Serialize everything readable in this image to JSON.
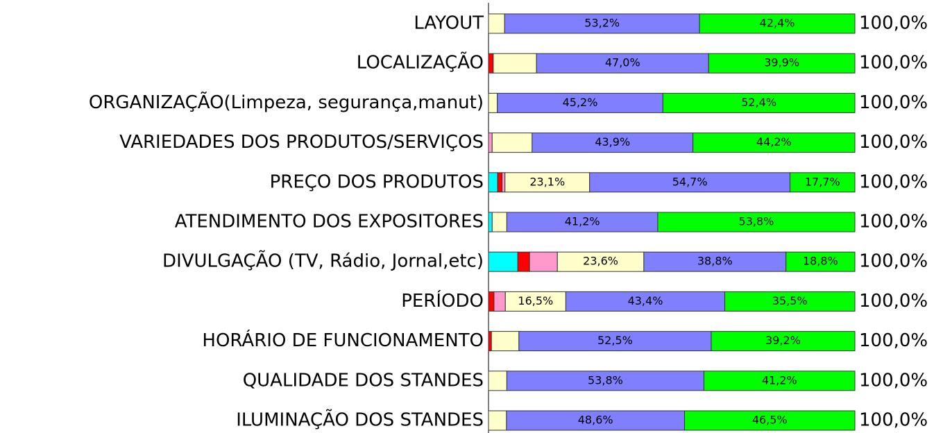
{
  "chart_data": {
    "type": "stacked-bar-horizontal",
    "categories": [
      "LAYOUT",
      "LOCALIZAÇÃO",
      "ORGANIZAÇÃO(Limpeza, segurança,manut)",
      "VARIEDADES DOS PRODUTOS/SERVIÇOS",
      "PREÇO DOS PRODUTOS",
      "ATENDIMENTO DOS EXPOSITORES",
      "DIVULGAÇÃO (TV, Rádio, Jornal,etc)",
      "PERÍODO",
      "HORÁRIO DE FUNCIONAMENTO",
      "QUALIDADE DOS STANDES",
      "ILUMINAÇÃO DOS STANDES"
    ],
    "xlim": [
      0,
      100
    ],
    "series": [
      {
        "color": "#00ffff",
        "values": [
          0,
          0,
          0,
          0,
          2.5,
          1.0,
          8.0,
          0,
          0,
          0,
          0
        ]
      },
      {
        "color": "#ff0000",
        "values": [
          0,
          1.3,
          0,
          0,
          1.2,
          0,
          3.2,
          1.5,
          0.8,
          0,
          0
        ]
      },
      {
        "color": "#ff99cc",
        "values": [
          0,
          0,
          0,
          1.0,
          0.8,
          0,
          7.6,
          3.1,
          0,
          0,
          0
        ]
      },
      {
        "color": "#ffffcc",
        "values": [
          4.4,
          11.8,
          2.4,
          10.9,
          23.1,
          4.0,
          23.6,
          16.5,
          7.5,
          5.0,
          4.9
        ],
        "value_labels": [
          null,
          null,
          null,
          null,
          "23,1%",
          null,
          "23,6%",
          "16,5%",
          null,
          null,
          null
        ]
      },
      {
        "color": "#8080ff",
        "values": [
          53.2,
          47.0,
          45.2,
          43.9,
          54.7,
          41.2,
          38.8,
          43.4,
          52.5,
          53.8,
          48.6
        ],
        "value_labels": [
          "53,2%",
          "47,0%",
          "45,2%",
          "43,9%",
          "54,7%",
          "41,2%",
          "38,8%",
          "43,4%",
          "52,5%",
          "53,8%",
          "48,6%"
        ]
      },
      {
        "color": "#00ff00",
        "values": [
          42.4,
          39.9,
          52.4,
          44.2,
          17.7,
          53.8,
          18.8,
          35.5,
          39.2,
          41.2,
          46.5
        ],
        "value_labels": [
          "42,4%",
          "39,9%",
          "52,4%",
          "44,2%",
          "17,7%",
          "53,8%",
          "18,8%",
          "35,5%",
          "39,2%",
          "41,2%",
          "46,5%"
        ]
      }
    ],
    "total_labels": [
      "100,0%",
      "100,0%",
      "100,0%",
      "100,0%",
      "100,0%",
      "100,0%",
      "100,0%",
      "100,0%",
      "100,0%",
      "100,0%",
      "100,0%"
    ]
  }
}
